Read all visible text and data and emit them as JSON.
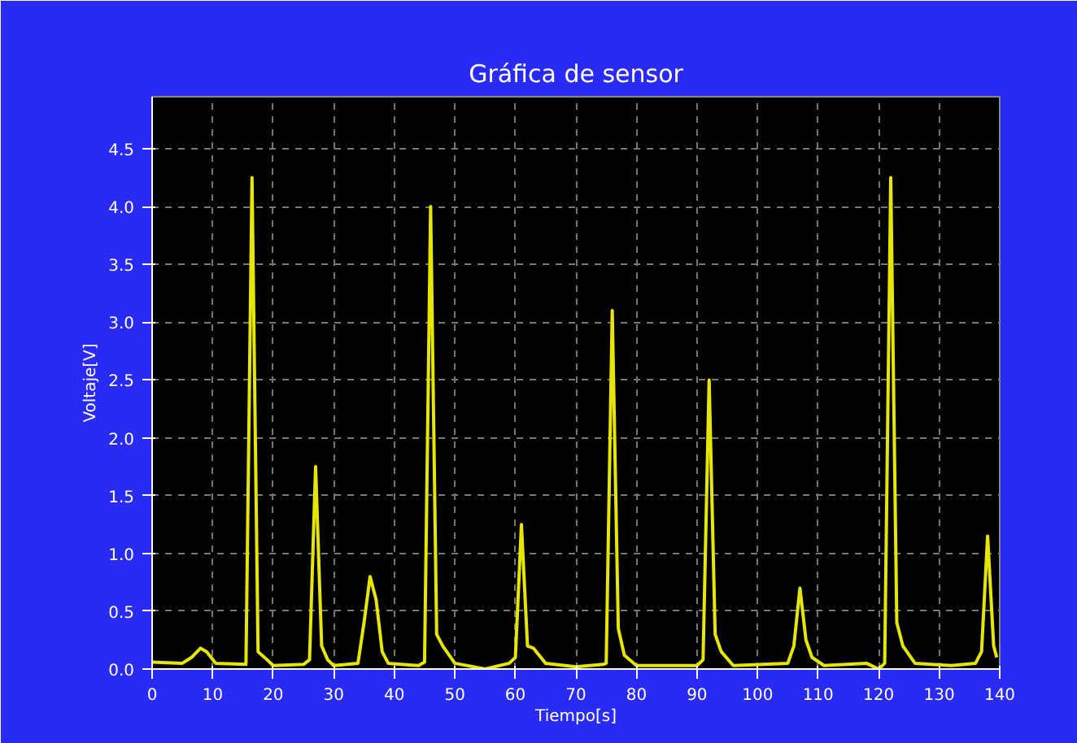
{
  "chart_data": {
    "type": "line",
    "title": "Gráfica de sensor",
    "xlabel": "Tiempo[s]",
    "ylabel": "Voltaje[V]",
    "x": [
      0,
      5,
      6.5,
      8,
      9,
      10.5,
      15.5,
      16.5,
      17.5,
      19,
      20,
      25,
      26,
      27,
      28,
      29,
      30,
      34,
      35,
      36,
      37,
      38,
      39,
      44,
      45,
      46,
      47,
      48,
      50,
      55,
      59,
      60,
      61,
      62,
      63,
      65,
      70,
      74.5,
      75,
      76,
      77,
      78,
      80,
      90,
      91,
      92,
      93,
      94,
      96,
      105,
      106,
      107,
      108,
      109,
      111,
      118,
      120,
      121,
      122,
      123,
      124,
      126,
      132,
      136,
      137,
      138,
      139,
      139.5
    ],
    "series": [
      {
        "color": "#e6e600",
        "values": [
          0.06,
          0.05,
          0.1,
          0.18,
          0.15,
          0.05,
          0.04,
          4.25,
          0.15,
          0.08,
          0.03,
          0.04,
          0.08,
          1.75,
          0.2,
          0.08,
          0.03,
          0.05,
          0.4,
          0.8,
          0.6,
          0.15,
          0.05,
          0.03,
          0.06,
          4.0,
          0.3,
          0.2,
          0.05,
          0.0,
          0.05,
          0.1,
          1.25,
          0.2,
          0.18,
          0.05,
          0.02,
          0.04,
          0.05,
          3.1,
          0.35,
          0.12,
          0.03,
          0.03,
          0.08,
          2.5,
          0.3,
          0.15,
          0.03,
          0.05,
          0.2,
          0.7,
          0.25,
          0.1,
          0.03,
          0.05,
          0.0,
          0.05,
          4.25,
          0.4,
          0.2,
          0.05,
          0.03,
          0.05,
          0.15,
          1.15,
          0.2,
          0.1
        ]
      }
    ],
    "xlim": [
      0,
      140
    ],
    "ylim": [
      0,
      4.95
    ],
    "xticks": [
      0,
      10,
      20,
      30,
      40,
      50,
      60,
      70,
      80,
      90,
      100,
      110,
      120,
      130,
      140
    ],
    "yticks": [
      {
        "value": 0,
        "label": "0.0"
      },
      {
        "value": 0.5,
        "label": "0.5"
      },
      {
        "value": 1,
        "label": "1.0"
      },
      {
        "value": 1.5,
        "label": "1.5"
      },
      {
        "value": 2,
        "label": "2.0"
      },
      {
        "value": 2.5,
        "label": "2.5"
      },
      {
        "value": 3,
        "label": "3.0"
      },
      {
        "value": 3.5,
        "label": "3.5"
      },
      {
        "value": 4,
        "label": "4.0"
      },
      {
        "value": 4.5,
        "label": "4.5"
      }
    ],
    "grid": true,
    "line_style": "solid",
    "marker": "none"
  }
}
